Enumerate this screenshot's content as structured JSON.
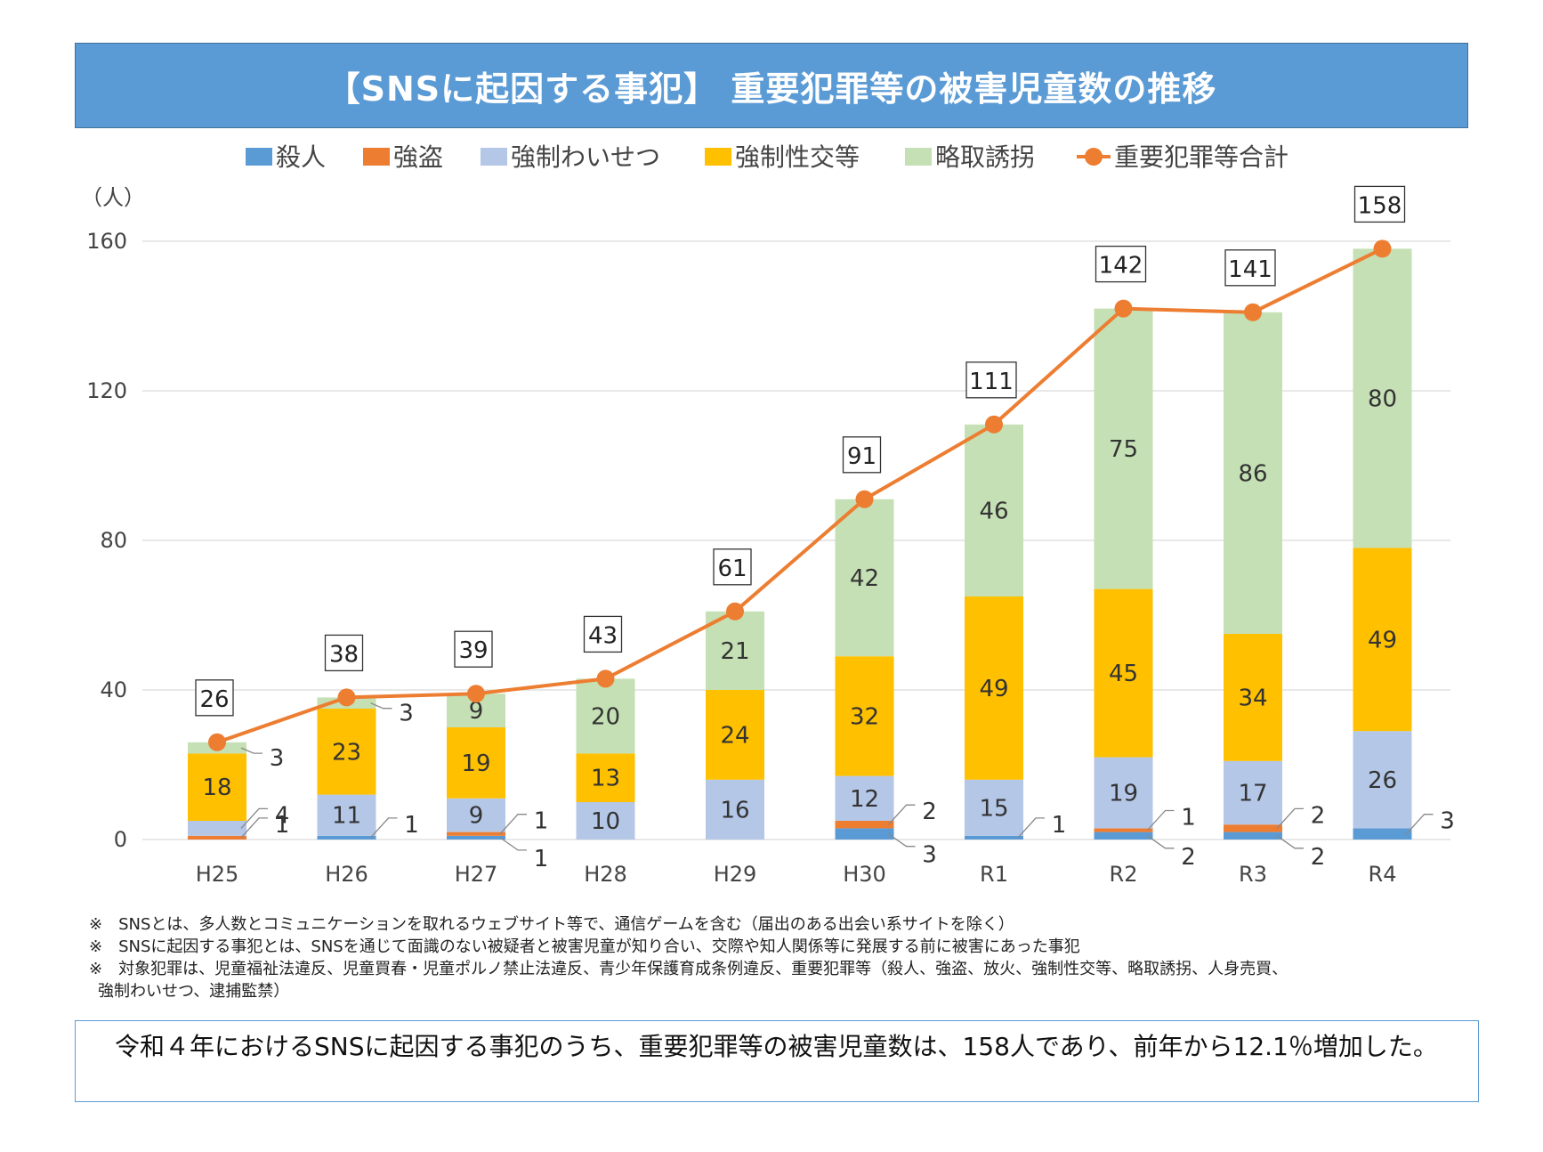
{
  "title": "【SNSに起因する事犯】 重要犯罪等の被害児童数の推移",
  "colors": {
    "murder": "#5b9bd5",
    "robbery": "#ed7d31",
    "indecency": "#b4c7e7",
    "intercourse": "#ffc000",
    "abduction": "#c5e0b4",
    "total": "#ed7d31",
    "grid": "#d9d9d9"
  },
  "chart_data": {
    "type": "bar",
    "stacked": true,
    "y_unit_label": "（人）",
    "ylim": [
      0,
      160
    ],
    "yticks": [
      0,
      40,
      80,
      120,
      160
    ],
    "grid": true,
    "legend_position": "top",
    "categories": [
      "H25",
      "H26",
      "H27",
      "H28",
      "H29",
      "H30",
      "R1",
      "R2",
      "R3",
      "R4"
    ],
    "series": [
      {
        "name": "殺人",
        "key": "murder",
        "values": [
          0,
          1,
          1,
          0,
          0,
          3,
          1,
          2,
          2,
          3
        ]
      },
      {
        "name": "強盗",
        "key": "robbery",
        "values": [
          1,
          0,
          1,
          0,
          0,
          2,
          0,
          1,
          2,
          0
        ]
      },
      {
        "name": "強制わいせつ",
        "key": "indecency",
        "values": [
          4,
          11,
          9,
          10,
          16,
          12,
          15,
          19,
          17,
          26
        ]
      },
      {
        "name": "強制性交等",
        "key": "intercourse",
        "values": [
          18,
          23,
          19,
          13,
          24,
          32,
          49,
          45,
          34,
          49
        ]
      },
      {
        "name": "略取誘拐",
        "key": "abduction",
        "values": [
          3,
          3,
          9,
          20,
          21,
          42,
          46,
          75,
          86,
          80
        ]
      }
    ],
    "line_series": {
      "name": "重要犯罪等合計",
      "key": "total",
      "values": [
        26,
        38,
        39,
        43,
        61,
        91,
        111,
        142,
        141,
        158
      ]
    }
  },
  "notes": [
    "※　SNSとは、多人数とコミュニケーションを取れるウェブサイト等で、通信ゲームを含む（届出のある出会い系サイトを除く）",
    "※　SNSに起因する事犯とは、SNSを通じて面識のない被疑者と被害児童が知り合い、交際や知人関係等に発展する前に被害にあった事犯",
    "※　対象犯罪は、児童福祉法違反、児童買春・児童ポルノ禁止法違反、青少年保護育成条例違反、重要犯罪等（殺人、強盗、放火、強制性交等、略取誘拐、人身売買、",
    "強制わいせつ、逮捕監禁）"
  ],
  "summary": "　令和４年におけるSNSに起因する事犯のうち、重要犯罪等の被害児童数は、158人であり、前年から12.1％増加した。"
}
